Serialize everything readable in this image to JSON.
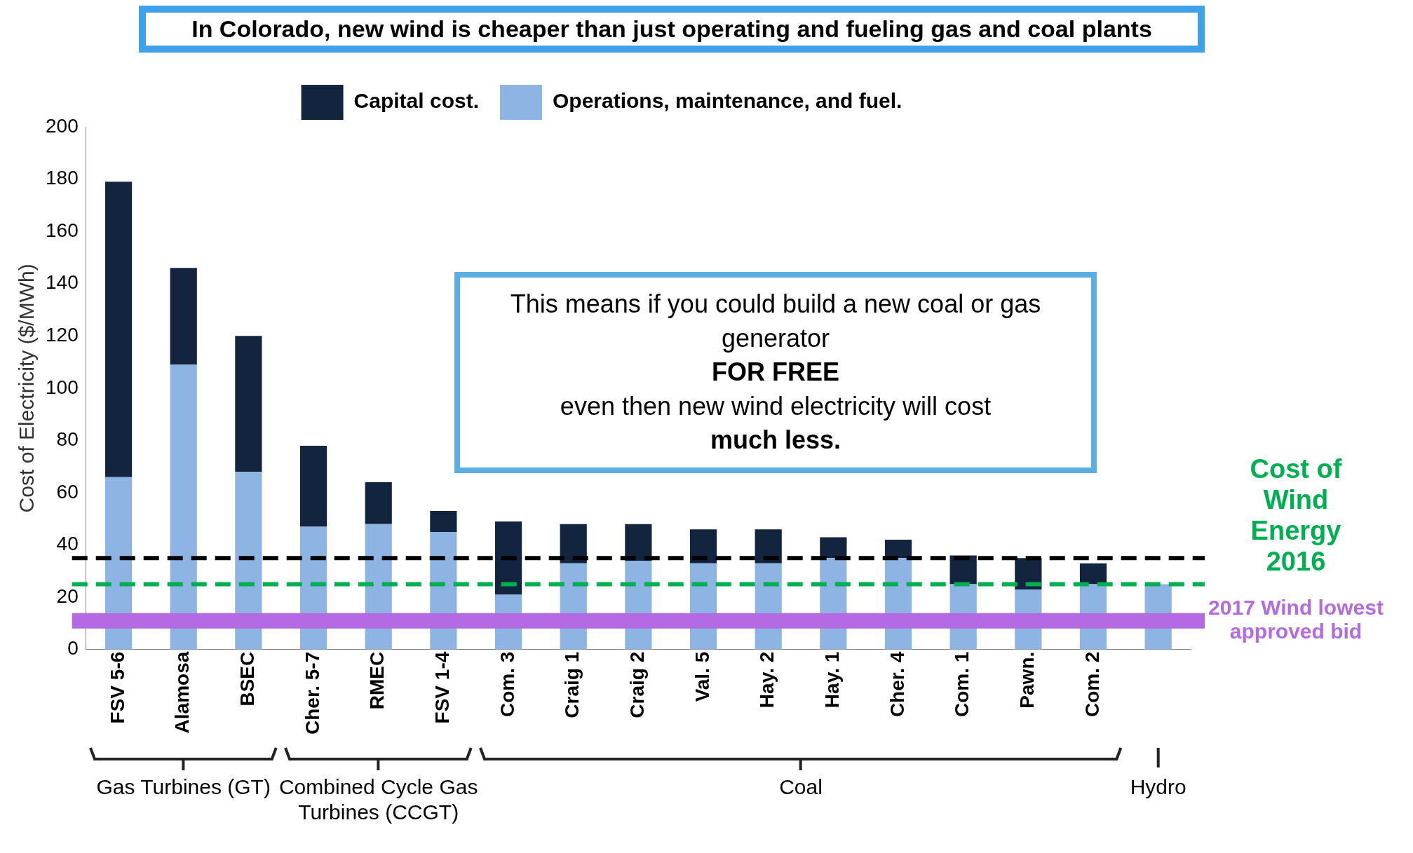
{
  "chart_data": {
    "type": "bar",
    "stacked": true,
    "title": "In Colorado, new wind is cheaper than just operating and fueling gas and coal plants",
    "ylabel": "Cost of Electricity ($/MWh)",
    "categories": [
      "FSV 5-6",
      "Alamosa",
      "BSEC",
      "Cher. 5-7",
      "RMEC",
      "FSV 1-4",
      "Com. 3",
      "Craig 1",
      "Craig 2",
      "Val. 5",
      "Hay. 2",
      "Hay. 1",
      "Cher. 4",
      "Com. 1",
      "Pawn.",
      "Com. 2",
      null
    ],
    "series": [
      {
        "name": "Operations, maintenance, and fuel.",
        "color": "#8eb4e3",
        "values": [
          66,
          109,
          68,
          47,
          48,
          45,
          21,
          33,
          34,
          33,
          33,
          35,
          35,
          25,
          23,
          25,
          25
        ]
      },
      {
        "name": "Capital cost.",
        "color": "#13243f",
        "values": [
          113,
          37,
          52,
          31,
          16,
          8,
          28,
          15,
          14,
          13,
          13,
          8,
          7,
          11,
          12,
          8,
          0
        ]
      }
    ],
    "ylim": [
      0,
      200
    ],
    "yticks": [
      0,
      20,
      40,
      60,
      80,
      100,
      120,
      140,
      160,
      180,
      200
    ],
    "grid": false,
    "legend": "top",
    "ref_lines": [
      {
        "axis": "y",
        "value": 35,
        "color": "#000000",
        "line_style": "dashed"
      },
      {
        "axis": "y",
        "value": 25,
        "label": "Cost of Wind Energy 2016",
        "color": "#00b050",
        "line_style": "dashed"
      },
      {
        "axis": "y",
        "value": 11,
        "label": "2017 Wind lowest approved bid",
        "color": "#b36ae2",
        "line_style": "solid"
      }
    ],
    "annotations": [
      "Gas Turbines (GT)",
      "Combined Cycle Gas Turbines (CCGT)",
      "Coal",
      "Hydro",
      "This means if you could build a new coal or gas generator",
      "FOR FREE",
      "even then new wind electricity will cost",
      "much less."
    ]
  }
}
